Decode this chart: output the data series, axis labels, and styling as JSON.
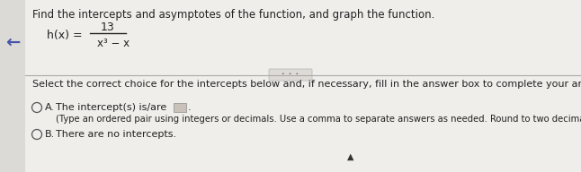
{
  "background_color": "#f0eeeb",
  "left_panel_color": "#e8e5e0",
  "main_color": "#f5f3f0",
  "title_text": "Find the intercepts and asymptotes of the function, and graph the function.",
  "title_fontsize": 8.5,
  "numerator": "13",
  "denominator": "x³ − x",
  "select_text": "Select the correct choice for the intercepts below and, if necessary, fill in the answer box to complete your answer.",
  "select_fontsize": 8.0,
  "option_a_main": "The intercept(s) is/are",
  "option_a_sub": "(Type an ordered pair using integers or decimals. Use a comma to separate answers as needed. Round to two decimal places as needed.)",
  "option_b": "There are no intercepts.",
  "option_fontsize": 8.0,
  "sub_fontsize": 7.2,
  "text_color": "#222222",
  "blue_arrow_color": "#4455aa",
  "radio_edge_color": "#555555",
  "box_fill": "#c8c2ba",
  "box_edge": "#999999",
  "divider_color": "#aaaaaa",
  "dots_fill": "#dedad5",
  "dots_edge": "#bbbbbb"
}
